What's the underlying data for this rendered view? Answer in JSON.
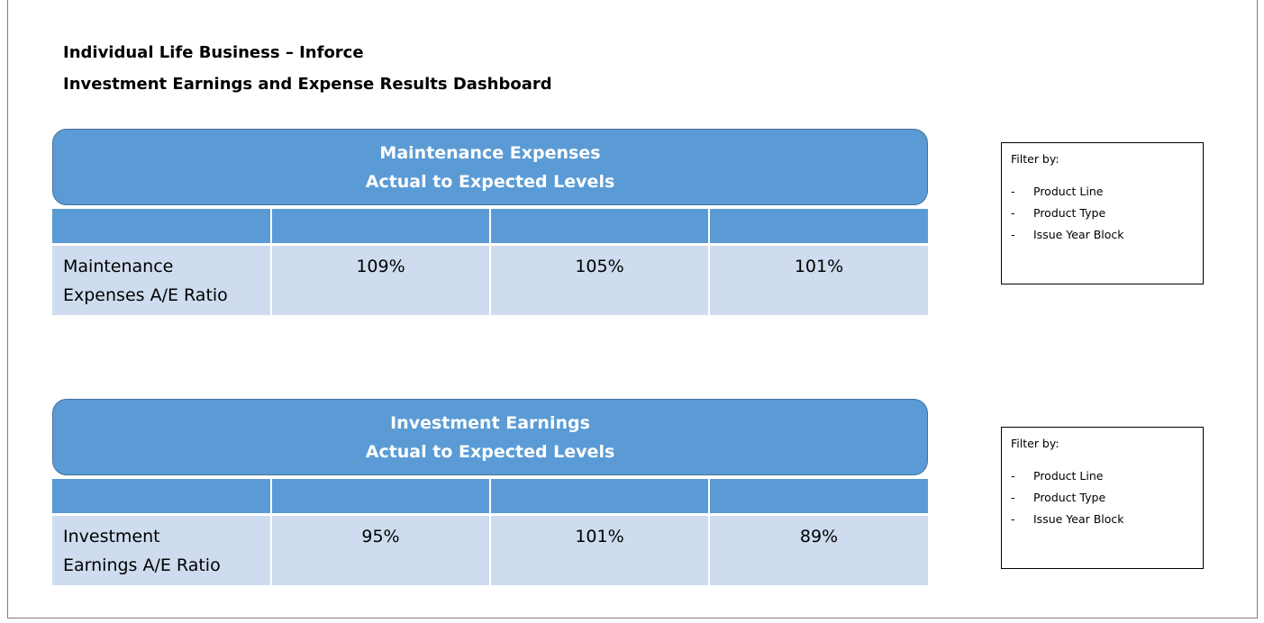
{
  "header": {
    "title": [
      "Individual Life Business – Inforce",
      "Investment Earnings and Expense Results Dashboard"
    ]
  },
  "panels": [
    {
      "title": [
        "Maintenance Expenses",
        "Actual to Expected Levels"
      ],
      "row_label": [
        "Maintenance",
        "Expenses A/E Ratio"
      ],
      "values": [
        "109%",
        "105%",
        "101%"
      ],
      "filter": {
        "title": "Filter by:",
        "items": [
          "Product Line",
          "Product Type",
          "Issue Year Block"
        ]
      }
    },
    {
      "title": [
        "Investment Earnings",
        "Actual to Expected Levels"
      ],
      "row_label": [
        "Investment",
        "Earnings A/E Ratio"
      ],
      "values": [
        "95%",
        "101%",
        "89%"
      ],
      "filter": {
        "title": "Filter by:",
        "items": [
          "Product Line",
          "Product Type",
          "Issue Year Block"
        ]
      }
    }
  ]
}
